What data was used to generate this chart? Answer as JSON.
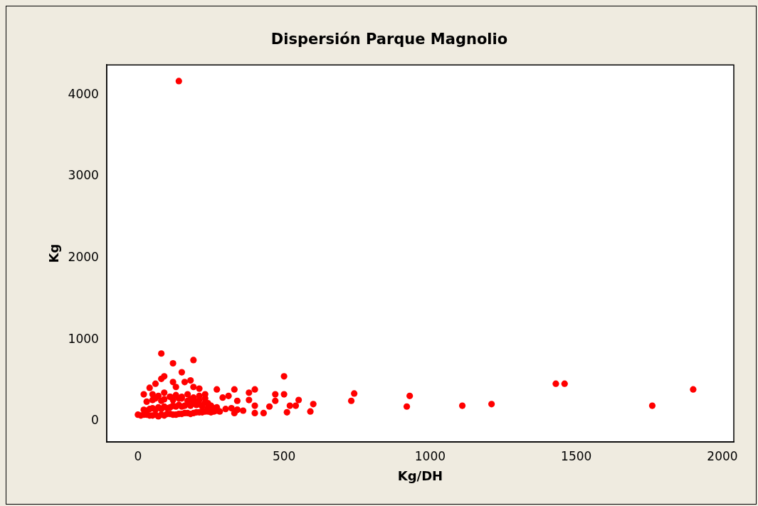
{
  "chart_data": {
    "type": "scatter",
    "title": "Dispersión Parque Magnolio",
    "xlabel": "Kg/DH",
    "ylabel": "Kg",
    "marker": "circle",
    "grid": false,
    "legend": false,
    "xlim": [
      -107,
      2039
    ],
    "ylim": [
      -254,
      4368
    ],
    "xticks": [
      0,
      500,
      1000,
      1500,
      2000
    ],
    "yticks": [
      0,
      1000,
      2000,
      3000,
      4000
    ],
    "series": [
      {
        "color": "#ff0000",
        "x": [
          80,
          120,
          190,
          150,
          90,
          80,
          180,
          60,
          120,
          160,
          40,
          130,
          190,
          210,
          270,
          330,
          20,
          230,
          290,
          310,
          340,
          380,
          400,
          380,
          400,
          400,
          430,
          450,
          470,
          470,
          500,
          500,
          510,
          520,
          550,
          540,
          600,
          590,
          330,
          340,
          730,
          740,
          920,
          930,
          1110,
          1210,
          1430,
          1460,
          1760,
          1900,
          140,
          0,
          10,
          20,
          30,
          40,
          50,
          60,
          70,
          80,
          90,
          100,
          110,
          120,
          130,
          140,
          150,
          160,
          170,
          180,
          190,
          200,
          210,
          220,
          230,
          240,
          250,
          260,
          270,
          280,
          20,
          30,
          40,
          50,
          60,
          70,
          80,
          90,
          100,
          110,
          120,
          130,
          140,
          150,
          160,
          170,
          180,
          190,
          200,
          210,
          220,
          240,
          250,
          260,
          270,
          30,
          50,
          60,
          80,
          90,
          110,
          120,
          140,
          150,
          170,
          180,
          200,
          210,
          230,
          240,
          50,
          70,
          90,
          110,
          130,
          150,
          170,
          190,
          210,
          230,
          300,
          320,
          340,
          360
        ],
        "values": [
          830,
          710,
          750,
          600,
          550,
          520,
          500,
          460,
          480,
          480,
          410,
          420,
          420,
          400,
          390,
          390,
          330,
          330,
          290,
          310,
          250,
          350,
          390,
          260,
          190,
          100,
          100,
          180,
          330,
          250,
          550,
          330,
          110,
          190,
          260,
          190,
          210,
          120,
          100,
          140,
          250,
          340,
          180,
          310,
          190,
          210,
          460,
          460,
          190,
          390,
          4170,
          80,
          70,
          80,
          80,
          70,
          70,
          80,
          60,
          80,
          70,
          90,
          90,
          80,
          80,
          90,
          90,
          100,
          100,
          90,
          100,
          110,
          110,
          110,
          120,
          120,
          110,
          120,
          130,
          120,
          140,
          130,
          150,
          160,
          140,
          170,
          150,
          180,
          160,
          170,
          190,
          180,
          200,
          180,
          190,
          210,
          190,
          220,
          200,
          210,
          180,
          170,
          190,
          160,
          170,
          240,
          260,
          280,
          250,
          270,
          300,
          260,
          280,
          300,
          250,
          270,
          240,
          260,
          230,
          220,
          330,
          310,
          350,
          300,
          320,
          280,
          330,
          290,
          310,
          280,
          150,
          160,
          140,
          130
        ]
      }
    ]
  }
}
